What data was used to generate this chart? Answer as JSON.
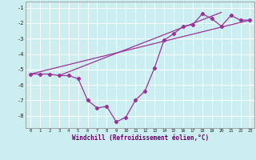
{
  "xlabel": "Windchill (Refroidissement éolien,°C)",
  "background_color": "#cceef0",
  "grid_color": "#ffffff",
  "line_color": "#993399",
  "main_x": [
    0,
    1,
    2,
    3,
    4,
    5,
    6,
    7,
    8,
    9,
    10,
    11,
    12,
    13,
    14,
    15,
    16,
    17,
    18,
    19,
    20,
    21,
    22,
    23
  ],
  "main_y": [
    -5.3,
    -5.3,
    -5.3,
    -5.4,
    -5.4,
    -5.6,
    -7.0,
    -7.5,
    -7.4,
    -8.4,
    -8.1,
    -7.0,
    -6.4,
    -4.9,
    -3.1,
    -2.7,
    -2.2,
    -2.1,
    -1.4,
    -1.7,
    -2.2,
    -1.5,
    -1.8,
    -1.8
  ],
  "line2_x": [
    0,
    23
  ],
  "line2_y": [
    -5.3,
    -1.8
  ],
  "line3_x": [
    3,
    20
  ],
  "line3_y": [
    -5.4,
    -1.3
  ],
  "xlim": [
    -0.5,
    23.5
  ],
  "ylim": [
    -8.8,
    -0.6
  ],
  "yticks": [
    -8,
    -7,
    -6,
    -5,
    -4,
    -3,
    -2,
    -1
  ],
  "xticks": [
    0,
    1,
    2,
    3,
    4,
    5,
    6,
    7,
    8,
    9,
    10,
    11,
    12,
    13,
    14,
    15,
    16,
    17,
    18,
    19,
    20,
    21,
    22,
    23
  ]
}
